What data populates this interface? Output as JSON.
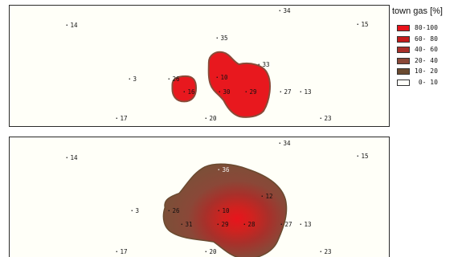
{
  "legend": {
    "title": "town gas [%]",
    "classes": [
      {
        "label": "80-100",
        "color": "#e8141c"
      },
      {
        "label": "60- 80",
        "color": "#c41c1c"
      },
      {
        "label": "40- 60",
        "color": "#a8302a"
      },
      {
        "label": "20- 40",
        "color": "#8a4838"
      },
      {
        "label": "10- 20",
        "color": "#6a4a30"
      },
      {
        "label": " 0- 10",
        "color": "#fffffa"
      }
    ]
  },
  "maps": [
    {
      "stations": [
        {
          "id": "34"
        },
        {
          "id": "14"
        },
        {
          "id": "15"
        },
        {
          "id": "35"
        },
        {
          "id": "33"
        },
        {
          "id": "3"
        },
        {
          "id": "26"
        },
        {
          "id": "10"
        },
        {
          "id": "16"
        },
        {
          "id": "30"
        },
        {
          "id": "29"
        },
        {
          "id": "27"
        },
        {
          "id": "13"
        },
        {
          "id": "17"
        },
        {
          "id": "20"
        },
        {
          "id": "23"
        }
      ]
    },
    {
      "stations": [
        {
          "id": "34"
        },
        {
          "id": "14"
        },
        {
          "id": "15"
        },
        {
          "id": "36"
        },
        {
          "id": "12"
        },
        {
          "id": "3"
        },
        {
          "id": "26"
        },
        {
          "id": "10"
        },
        {
          "id": "31"
        },
        {
          "id": "29"
        },
        {
          "id": "28"
        },
        {
          "id": "27"
        },
        {
          "id": "13"
        },
        {
          "id": "17"
        },
        {
          "id": "20"
        },
        {
          "id": "23"
        }
      ]
    }
  ]
}
